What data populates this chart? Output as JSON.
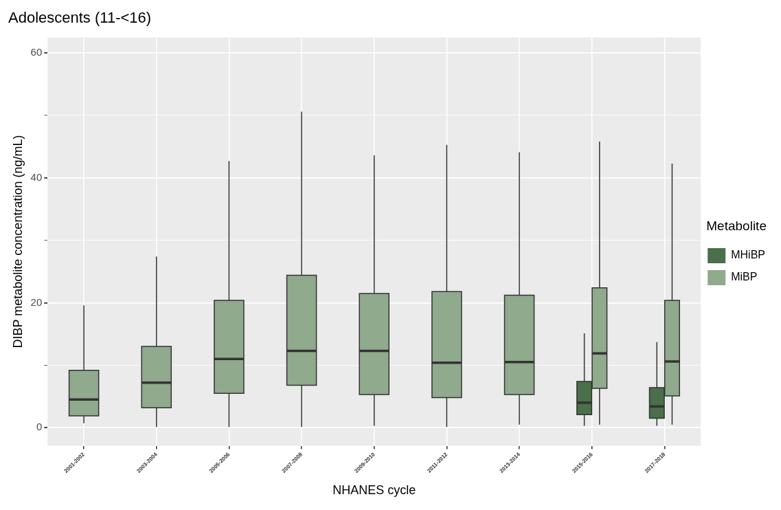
{
  "chart_data": {
    "type": "box",
    "title": "Adolescents (11-<16)",
    "xlabel": "NHANES cycle",
    "ylabel": "DIBP metabolite concentration (ng/mL)",
    "legend_title": "Metabolite",
    "legend": "right",
    "grid": true,
    "categories": [
      "2001-2002",
      "2003-2004",
      "2005-2006",
      "2007-2008",
      "2009-2010",
      "2011-2012",
      "2013-2014",
      "2015-2016",
      "2017-2018"
    ],
    "ylim": [
      -2.9,
      62.5
    ],
    "yticks": [
      0,
      {
        "value": 10,
        "label": null
      },
      20,
      {
        "value": 30,
        "label": null
      },
      40,
      {
        "value": 50,
        "label": null
      },
      60
    ],
    "series": [
      {
        "name": "MHiBP",
        "color": "#4a6f4a",
        "boxes": [
          null,
          null,
          null,
          null,
          null,
          null,
          null,
          {
            "low": 0.3,
            "q1": 2.1,
            "median": 4.0,
            "q3": 7.4,
            "high": 15.1
          },
          {
            "low": 0.3,
            "q1": 1.5,
            "median": 3.4,
            "q3": 6.4,
            "high": 13.7
          }
        ]
      },
      {
        "name": "MiBP",
        "color": "#8faa8c",
        "boxes": [
          {
            "low": 0.7,
            "q1": 1.9,
            "median": 4.5,
            "q3": 9.2,
            "high": 19.6
          },
          {
            "low": 0.1,
            "q1": 3.2,
            "median": 7.2,
            "q3": 13.0,
            "high": 27.4
          },
          {
            "low": 0.1,
            "q1": 5.5,
            "median": 11.0,
            "q3": 20.4,
            "high": 42.7
          },
          {
            "low": 0.1,
            "q1": 6.8,
            "median": 12.3,
            "q3": 24.4,
            "high": 50.6
          },
          {
            "low": 0.3,
            "q1": 5.3,
            "median": 12.3,
            "q3": 21.5,
            "high": 43.6
          },
          {
            "low": 0.1,
            "q1": 4.8,
            "median": 10.4,
            "q3": 21.8,
            "high": 45.3
          },
          {
            "low": 0.5,
            "q1": 5.3,
            "median": 10.5,
            "q3": 21.2,
            "high": 44.1
          },
          {
            "low": 0.5,
            "q1": 6.3,
            "median": 11.9,
            "q3": 22.4,
            "high": 45.8
          },
          {
            "low": 0.5,
            "q1": 5.1,
            "median": 10.6,
            "q3": 20.4,
            "high": 42.3
          }
        ]
      }
    ]
  }
}
